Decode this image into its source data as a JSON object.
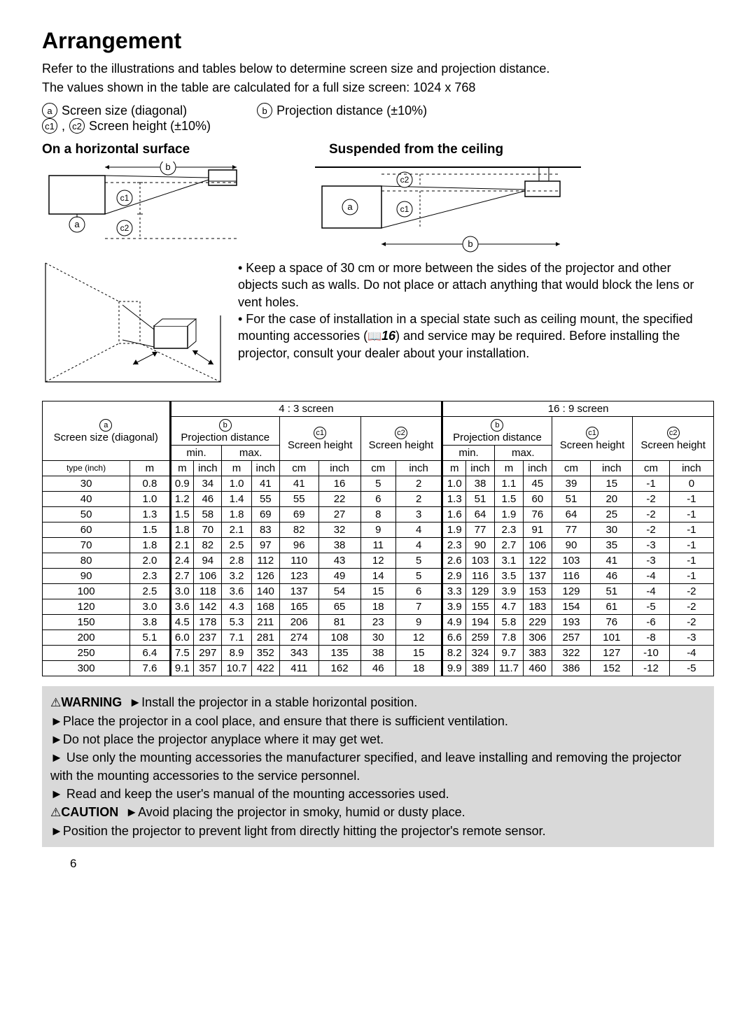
{
  "title": "Arrangement",
  "intro_line1": "Refer to the illustrations and tables below to determine screen size and projection distance.",
  "intro_line2": "The values shown in the table are calculated for a full size screen: 1024 x 768",
  "legend": {
    "a": "Screen size (diagonal)",
    "b": "Projection distance (±10%)",
    "c": "Screen height (±10%)"
  },
  "subhead_left": "On a horizontal surface",
  "subhead_right": "Suspended from the ceiling",
  "notes": {
    "p1": "• Keep a space of 30 cm or more between the sides of the projector and other objects such as walls. Do not place or attach anything that would block the lens or vent holes.",
    "p2_a": "• For the case of installation in a special state such as ceiling mount, the specified mounting accessories (",
    "p2_ref": "16",
    "p2_b": ") and service may be required. Before installing the projector, consult your dealer about your installation."
  },
  "table": {
    "col_group_43": "4 : 3 screen",
    "col_group_169": "16 : 9 screen",
    "col_a": "Screen size (diagonal)",
    "col_b": "Projection distance",
    "col_c1": "Screen height",
    "col_c2": "Screen height",
    "sub_min": "min.",
    "sub_max": "max.",
    "hdr_type": "type (inch)",
    "hdr_m": "m",
    "hdr_inch": "inch",
    "hdr_cm": "cm",
    "rows": [
      [
        30,
        "0.8",
        "0.9",
        34,
        "1.0",
        41,
        41,
        16,
        5,
        2,
        "1.0",
        38,
        "1.1",
        45,
        39,
        15,
        "-1",
        0
      ],
      [
        40,
        "1.0",
        "1.2",
        46,
        "1.4",
        55,
        55,
        22,
        6,
        2,
        "1.3",
        51,
        "1.5",
        60,
        51,
        20,
        "-2",
        "-1"
      ],
      [
        50,
        "1.3",
        "1.5",
        58,
        "1.8",
        69,
        69,
        27,
        8,
        3,
        "1.6",
        64,
        "1.9",
        76,
        64,
        25,
        "-2",
        "-1"
      ],
      [
        60,
        "1.5",
        "1.8",
        70,
        "2.1",
        83,
        82,
        32,
        9,
        4,
        "1.9",
        77,
        "2.3",
        91,
        77,
        30,
        "-2",
        "-1"
      ],
      [
        70,
        "1.8",
        "2.1",
        82,
        "2.5",
        97,
        96,
        38,
        11,
        4,
        "2.3",
        90,
        "2.7",
        106,
        90,
        35,
        "-3",
        "-1"
      ],
      [
        80,
        "2.0",
        "2.4",
        94,
        "2.8",
        112,
        110,
        43,
        12,
        5,
        "2.6",
        103,
        "3.1",
        122,
        103,
        41,
        "-3",
        "-1"
      ],
      [
        90,
        "2.3",
        "2.7",
        106,
        "3.2",
        126,
        123,
        49,
        14,
        5,
        "2.9",
        116,
        "3.5",
        137,
        116,
        46,
        "-4",
        "-1"
      ],
      [
        100,
        "2.5",
        "3.0",
        118,
        "3.6",
        140,
        137,
        54,
        15,
        6,
        "3.3",
        129,
        "3.9",
        153,
        129,
        51,
        "-4",
        "-2"
      ],
      [
        120,
        "3.0",
        "3.6",
        142,
        "4.3",
        168,
        165,
        65,
        18,
        7,
        "3.9",
        155,
        "4.7",
        183,
        154,
        61,
        "-5",
        "-2"
      ],
      [
        150,
        "3.8",
        "4.5",
        178,
        "5.3",
        211,
        206,
        81,
        23,
        9,
        "4.9",
        194,
        "5.8",
        229,
        193,
        76,
        "-6",
        "-2"
      ],
      [
        200,
        "5.1",
        "6.0",
        237,
        "7.1",
        281,
        274,
        108,
        30,
        12,
        "6.6",
        259,
        "7.8",
        306,
        257,
        101,
        "-8",
        "-3"
      ],
      [
        250,
        "6.4",
        "7.5",
        297,
        "8.9",
        352,
        343,
        135,
        38,
        15,
        "8.2",
        324,
        "9.7",
        383,
        322,
        127,
        "-10",
        "-4"
      ],
      [
        300,
        "7.6",
        "9.1",
        357,
        "10.7",
        422,
        411,
        162,
        46,
        18,
        "9.9",
        389,
        "11.7",
        460,
        386,
        152,
        "-12",
        "-5"
      ]
    ]
  },
  "warning": {
    "label_w": "WARNING",
    "w1": "Install the projector in a stable horizontal position.",
    "w2": "Place the projector in a cool place, and ensure that there is sufficient ventilation.",
    "w3": "Do not place the projector anyplace where it may get wet.",
    "w4": " Use only the mounting accessories the manufacturer specified, and leave installing and removing the projector with the mounting accessories to the service personnel.",
    "w5": " Read and keep the user's manual of the mounting accessories used.",
    "label_c": "CAUTION",
    "c1": "Avoid placing the projector in smoky, humid or dusty place.",
    "c2": "Position the projector to prevent light from directly hitting the projector's remote sensor."
  },
  "page_number": "6",
  "colors": {
    "grey_box": "#d9d9d9",
    "text": "#000000",
    "bg": "#ffffff"
  },
  "diagram_style": {
    "stroke": "#000000",
    "stroke_width": 1.5,
    "dash": "3,3"
  }
}
